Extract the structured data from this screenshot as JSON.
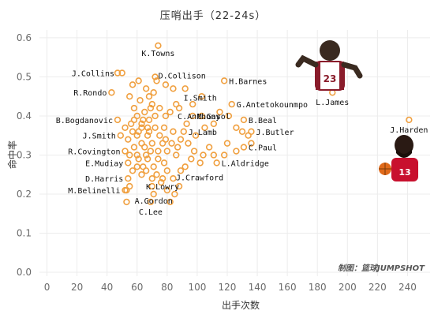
{
  "chart_data": {
    "type": "scatter",
    "title": "压哨出手（22-24s）",
    "xlabel": "出手次数",
    "ylabel": "命中率",
    "xlim": [
      -5,
      255
    ],
    "ylim": [
      -0.01,
      0.62
    ],
    "x_ticks": [
      0,
      20,
      40,
      60,
      80,
      100,
      120,
      140,
      160,
      180,
      200,
      220,
      240
    ],
    "y_ticks": [
      0.0,
      0.1,
      0.2,
      0.3,
      0.4,
      0.5,
      0.6
    ],
    "y_tick_labels": [
      "0.0",
      "0.1",
      "0.2",
      "0.3",
      "0.4",
      "0.5",
      "0.6"
    ],
    "grid": true,
    "marker_color": "#f0a040",
    "credit": "制图：篮球JUMPSHOT",
    "labeled_points": [
      {
        "name": "K.Towns",
        "x": 74,
        "y": 0.58
      },
      {
        "name": "D.Collison",
        "x": 72,
        "y": 0.5
      },
      {
        "name": "J.Collins",
        "x": 47,
        "y": 0.51
      },
      {
        "name": "H.Barnes",
        "x": 118,
        "y": 0.49
      },
      {
        "name": "L.James",
        "x": 190,
        "y": 0.46
      },
      {
        "name": "R.Rondo",
        "x": 43,
        "y": 0.46
      },
      {
        "name": "I.Smith",
        "x": 92,
        "y": 0.47
      },
      {
        "name": "G.Antetokounmpo",
        "x": 123,
        "y": 0.43
      },
      {
        "name": "C.Anthony",
        "x": 88,
        "y": 0.42
      },
      {
        "name": "B.Bogdanovic",
        "x": 47,
        "y": 0.39
      },
      {
        "name": "M.Gasol",
        "x": 103,
        "y": 0.4
      },
      {
        "name": "B.Beal",
        "x": 131,
        "y": 0.39
      },
      {
        "name": "J.Harden",
        "x": 241,
        "y": 0.39
      },
      {
        "name": "J.Smith",
        "x": 49,
        "y": 0.35
      },
      {
        "name": "J.Lamb",
        "x": 91,
        "y": 0.36
      },
      {
        "name": "J.Butler",
        "x": 136,
        "y": 0.36
      },
      {
        "name": "C.Paul",
        "x": 131,
        "y": 0.32
      },
      {
        "name": "R.Covington",
        "x": 52,
        "y": 0.31
      },
      {
        "name": "E.Mudiay",
        "x": 54,
        "y": 0.28
      },
      {
        "name": "L.Aldridge",
        "x": 113,
        "y": 0.28
      },
      {
        "name": "J.Crawford",
        "x": 89,
        "y": 0.26
      },
      {
        "name": "D.Harris",
        "x": 54,
        "y": 0.24
      },
      {
        "name": "K.Lowry",
        "x": 77,
        "y": 0.24
      },
      {
        "name": "M.Belinelli",
        "x": 52,
        "y": 0.21
      },
      {
        "name": "A.Gordon",
        "x": 71,
        "y": 0.2
      },
      {
        "name": "C.Lee",
        "x": 69,
        "y": 0.18
      }
    ],
    "other_points": [
      [
        50,
        0.51
      ],
      [
        57,
        0.48
      ],
      [
        61,
        0.49
      ],
      [
        66,
        0.47
      ],
      [
        68,
        0.45
      ],
      [
        73,
        0.49
      ],
      [
        79,
        0.48
      ],
      [
        84,
        0.47
      ],
      [
        86,
        0.43
      ],
      [
        70,
        0.43
      ],
      [
        55,
        0.45
      ],
      [
        58,
        0.42
      ],
      [
        62,
        0.44
      ],
      [
        65,
        0.41
      ],
      [
        56,
        0.38
      ],
      [
        60,
        0.4
      ],
      [
        63,
        0.38
      ],
      [
        68,
        0.39
      ],
      [
        72,
        0.4
      ],
      [
        75,
        0.42
      ],
      [
        79,
        0.4
      ],
      [
        82,
        0.41
      ],
      [
        93,
        0.38
      ],
      [
        97,
        0.4
      ],
      [
        99,
        0.35
      ],
      [
        105,
        0.37
      ],
      [
        111,
        0.38
      ],
      [
        115,
        0.41
      ],
      [
        121,
        0.4
      ],
      [
        126,
        0.37
      ],
      [
        134,
        0.35
      ],
      [
        136,
        0.33
      ],
      [
        126,
        0.31
      ],
      [
        118,
        0.3
      ],
      [
        111,
        0.3
      ],
      [
        108,
        0.32
      ],
      [
        102,
        0.28
      ],
      [
        96,
        0.29
      ],
      [
        92,
        0.27
      ],
      [
        87,
        0.32
      ],
      [
        83,
        0.33
      ],
      [
        80,
        0.31
      ],
      [
        77,
        0.33
      ],
      [
        74,
        0.31
      ],
      [
        70,
        0.33
      ],
      [
        67,
        0.35
      ],
      [
        63,
        0.37
      ],
      [
        60,
        0.35
      ],
      [
        57,
        0.36
      ],
      [
        54,
        0.34
      ],
      [
        55,
        0.3
      ],
      [
        58,
        0.32
      ],
      [
        61,
        0.29
      ],
      [
        64,
        0.27
      ],
      [
        67,
        0.29
      ],
      [
        71,
        0.27
      ],
      [
        74,
        0.29
      ],
      [
        78,
        0.28
      ],
      [
        80,
        0.26
      ],
      [
        84,
        0.24
      ],
      [
        88,
        0.22
      ],
      [
        85,
        0.2
      ],
      [
        80,
        0.21
      ],
      [
        76,
        0.23
      ],
      [
        73,
        0.25
      ],
      [
        70,
        0.24
      ],
      [
        66,
        0.26
      ],
      [
        63,
        0.25
      ],
      [
        60,
        0.27
      ],
      [
        57,
        0.26
      ],
      [
        55,
        0.22
      ],
      [
        53,
        0.21
      ],
      [
        70,
        0.22
      ],
      [
        82,
        0.18
      ],
      [
        60,
        0.3
      ],
      [
        65,
        0.32
      ],
      [
        68,
        0.36
      ],
      [
        75,
        0.35
      ],
      [
        78,
        0.37
      ],
      [
        84,
        0.36
      ],
      [
        89,
        0.34
      ],
      [
        94,
        0.33
      ],
      [
        98,
        0.31
      ],
      [
        104,
        0.3
      ],
      [
        72,
        0.37
      ],
      [
        79,
        0.34
      ],
      [
        86,
        0.3
      ],
      [
        63,
        0.33
      ],
      [
        66,
        0.3
      ],
      [
        69,
        0.31
      ],
      [
        52,
        0.37
      ],
      [
        58,
        0.39
      ],
      [
        61,
        0.36
      ],
      [
        64,
        0.39
      ],
      [
        67,
        0.37
      ],
      [
        120,
        0.33
      ],
      [
        130,
        0.36
      ],
      [
        97,
        0.43
      ],
      [
        103,
        0.45
      ],
      [
        71,
        0.46
      ],
      [
        53,
        0.18
      ],
      [
        69,
        0.42
      ]
    ]
  },
  "decorations": {
    "lebron_image": "lebron-photo",
    "harden_image": "harden-photo"
  }
}
